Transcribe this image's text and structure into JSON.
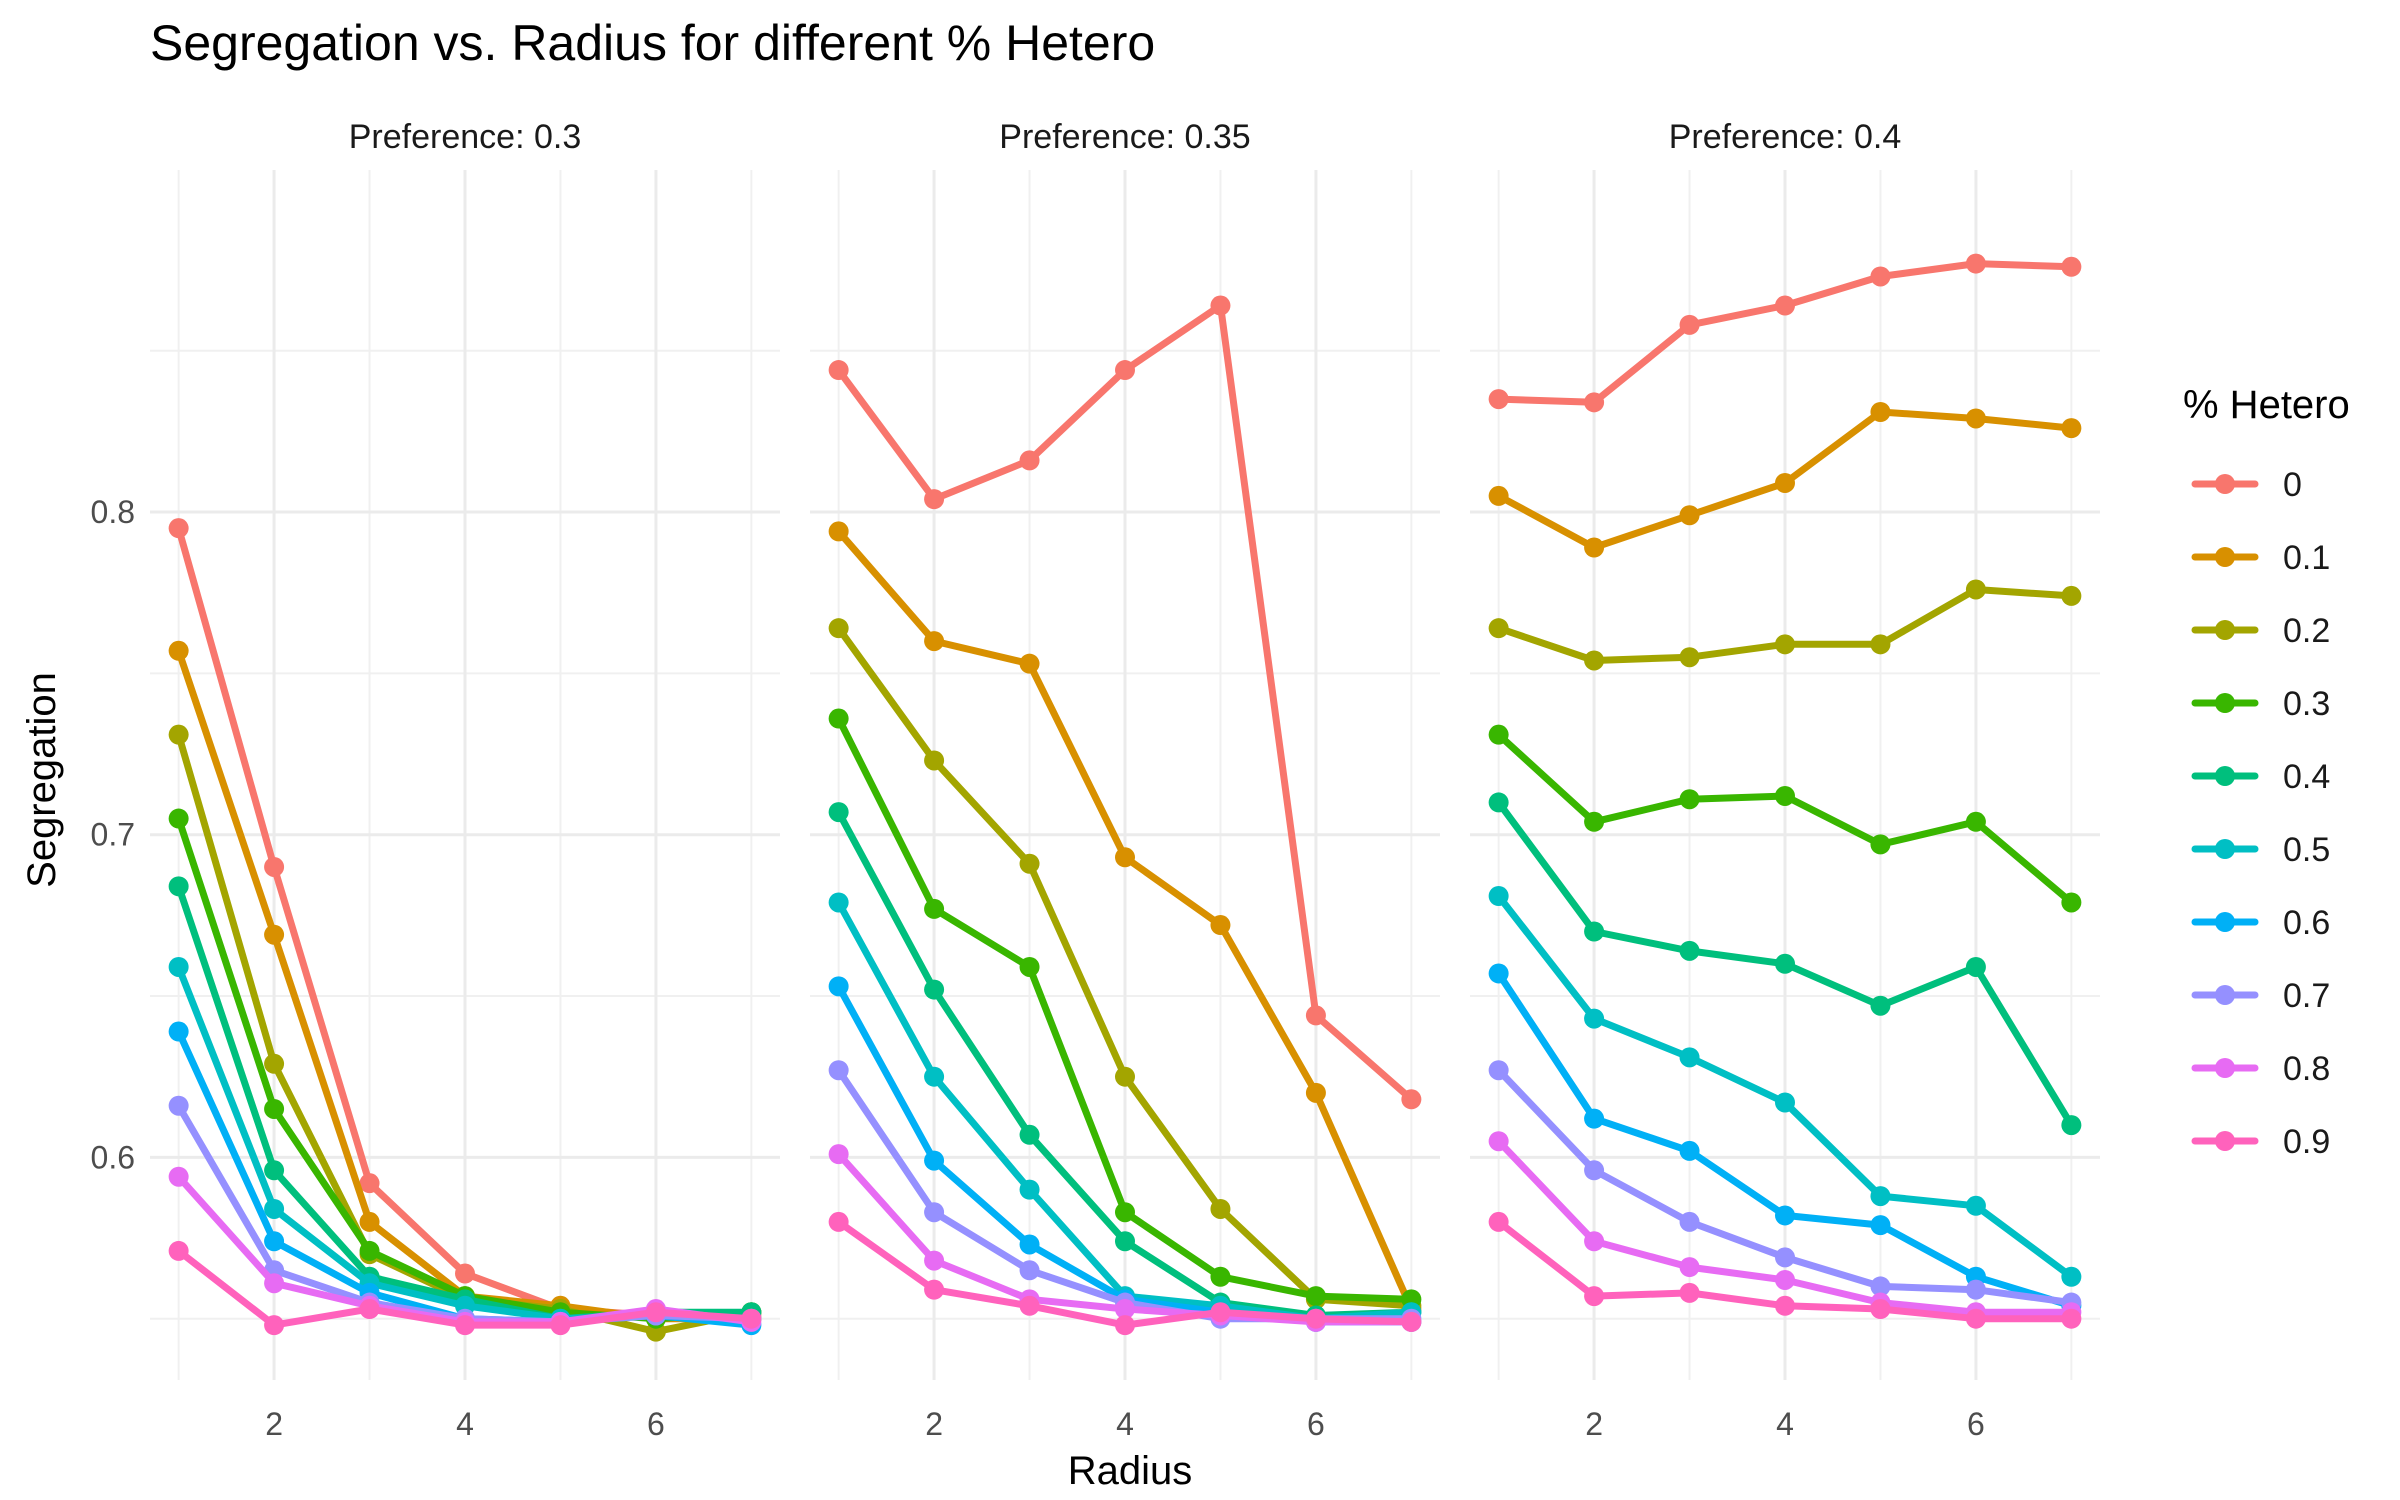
{
  "chart_data": {
    "type": "line",
    "title": "Segregation vs. Radius for different % Hetero",
    "xlabel": "Radius",
    "ylabel": "Segregation",
    "x": [
      1,
      2,
      3,
      4,
      5,
      6,
      7
    ],
    "xticks": [
      2,
      4,
      6
    ],
    "yticks": [
      0.6,
      0.7,
      0.8
    ],
    "ylim": [
      0.531,
      0.906
    ],
    "xlim": [
      0.7,
      7.3
    ],
    "grid": true,
    "legend": {
      "title": "% Hetero",
      "position": "right",
      "entries": [
        "0",
        "0.1",
        "0.2",
        "0.3",
        "0.4",
        "0.5",
        "0.6",
        "0.7",
        "0.8",
        "0.9"
      ]
    },
    "colors": [
      "#F8766D",
      "#D89000",
      "#A3A500",
      "#39B600",
      "#00BF7D",
      "#00BFC4",
      "#00B0F6",
      "#9590FF",
      "#E76BF3",
      "#FF62BC"
    ],
    "panels": [
      {
        "label": "Preference:  0.3",
        "series": [
          {
            "name": "0",
            "values": [
              0.795,
              0.69,
              0.592,
              0.564,
              0.553,
              0.551,
              0.551
            ]
          },
          {
            "name": "0.1",
            "values": [
              0.757,
              0.669,
              0.58,
              0.557,
              0.554,
              0.55,
              0.55
            ]
          },
          {
            "name": "0.2",
            "values": [
              0.731,
              0.629,
              0.57,
              0.556,
              0.553,
              0.546,
              0.552
            ]
          },
          {
            "name": "0.3",
            "values": [
              0.705,
              0.615,
              0.571,
              0.557,
              0.552,
              0.55,
              0.552
            ]
          },
          {
            "name": "0.4",
            "values": [
              0.684,
              0.596,
              0.563,
              0.556,
              0.55,
              0.552,
              0.552
            ]
          },
          {
            "name": "0.5",
            "values": [
              0.659,
              0.584,
              0.561,
              0.554,
              0.55,
              0.551,
              0.55
            ]
          },
          {
            "name": "0.6",
            "values": [
              0.639,
              0.574,
              0.558,
              0.55,
              0.549,
              0.551,
              0.548
            ]
          },
          {
            "name": "0.7",
            "values": [
              0.616,
              0.565,
              0.555,
              0.55,
              0.549,
              0.551,
              0.55
            ]
          },
          {
            "name": "0.8",
            "values": [
              0.594,
              0.561,
              0.554,
              0.549,
              0.549,
              0.553,
              0.549
            ]
          },
          {
            "name": "0.9",
            "values": [
              0.571,
              0.548,
              0.553,
              0.548,
              0.548,
              0.552,
              0.55
            ]
          }
        ]
      },
      {
        "label": "Preference:  0.35",
        "series": [
          {
            "name": "0",
            "values": [
              0.844,
              0.804,
              0.816,
              0.844,
              0.864,
              0.644,
              0.618
            ]
          },
          {
            "name": "0.1",
            "values": [
              0.794,
              0.76,
              0.753,
              0.693,
              0.672,
              0.62,
              0.553
            ]
          },
          {
            "name": "0.2",
            "values": [
              0.764,
              0.723,
              0.691,
              0.625,
              0.584,
              0.556,
              0.554
            ]
          },
          {
            "name": "0.3",
            "values": [
              0.736,
              0.677,
              0.659,
              0.583,
              0.563,
              0.557,
              0.556
            ]
          },
          {
            "name": "0.4",
            "values": [
              0.707,
              0.652,
              0.607,
              0.574,
              0.555,
              0.551,
              0.552
            ]
          },
          {
            "name": "0.5",
            "values": [
              0.679,
              0.625,
              0.59,
              0.557,
              0.554,
              0.55,
              0.552
            ]
          },
          {
            "name": "0.6",
            "values": [
              0.653,
              0.599,
              0.573,
              0.556,
              0.552,
              0.549,
              0.549
            ]
          },
          {
            "name": "0.7",
            "values": [
              0.627,
              0.583,
              0.565,
              0.555,
              0.55,
              0.55,
              0.55
            ]
          },
          {
            "name": "0.8",
            "values": [
              0.601,
              0.568,
              0.556,
              0.553,
              0.551,
              0.549,
              0.549
            ]
          },
          {
            "name": "0.9",
            "values": [
              0.58,
              0.559,
              0.554,
              0.548,
              0.552,
              0.55,
              0.549
            ]
          }
        ]
      },
      {
        "label": "Preference:  0.4",
        "series": [
          {
            "name": "0",
            "values": [
              0.835,
              0.834,
              0.858,
              0.864,
              0.873,
              0.877,
              0.876
            ]
          },
          {
            "name": "0.1",
            "values": [
              0.805,
              0.789,
              0.799,
              0.809,
              0.831,
              0.829,
              0.826
            ]
          },
          {
            "name": "0.2",
            "values": [
              0.764,
              0.754,
              0.755,
              0.759,
              0.759,
              0.776,
              0.774
            ]
          },
          {
            "name": "0.3",
            "values": [
              0.731,
              0.704,
              0.711,
              0.712,
              0.697,
              0.704,
              0.679
            ]
          },
          {
            "name": "0.4",
            "values": [
              0.71,
              0.67,
              0.664,
              0.66,
              0.647,
              0.659,
              0.61
            ]
          },
          {
            "name": "0.5",
            "values": [
              0.681,
              0.643,
              0.631,
              0.617,
              0.588,
              0.585,
              0.563
            ]
          },
          {
            "name": "0.6",
            "values": [
              0.657,
              0.612,
              0.602,
              0.582,
              0.579,
              0.563,
              0.554
            ]
          },
          {
            "name": "0.7",
            "values": [
              0.627,
              0.596,
              0.58,
              0.569,
              0.56,
              0.559,
              0.555
            ]
          },
          {
            "name": "0.8",
            "values": [
              0.605,
              0.574,
              0.566,
              0.562,
              0.555,
              0.552,
              0.552
            ]
          },
          {
            "name": "0.9",
            "values": [
              0.58,
              0.557,
              0.558,
              0.554,
              0.553,
              0.55,
              0.55
            ]
          }
        ]
      }
    ]
  }
}
